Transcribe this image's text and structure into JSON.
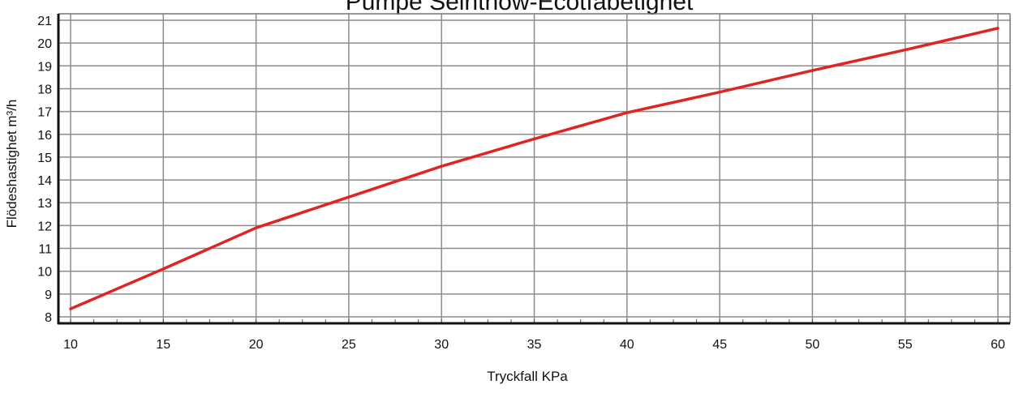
{
  "chart_data": {
    "type": "line",
    "title": "Pumpe Seinthow-Ecotfabetighet",
    "xlabel": "Tryckfall KPa",
    "ylabel": "Flödeshastighet m³/h",
    "xlim": [
      10,
      60
    ],
    "ylim": [
      8,
      21
    ],
    "x_ticks": [
      10,
      15,
      20,
      25,
      30,
      35,
      40,
      45,
      50,
      55,
      60
    ],
    "y_ticks": [
      8,
      9,
      10,
      11,
      12,
      13,
      14,
      15,
      16,
      17,
      18,
      19,
      20,
      21
    ],
    "grid": true,
    "series": [
      {
        "color": "#e02424",
        "x": [
          10,
          15,
          20,
          25,
          30,
          35,
          40,
          45,
          50,
          55,
          60
        ],
        "y": [
          8.35,
          10.1,
          11.9,
          13.25,
          14.6,
          15.8,
          16.95,
          17.85,
          18.8,
          19.7,
          20.65
        ]
      }
    ]
  }
}
